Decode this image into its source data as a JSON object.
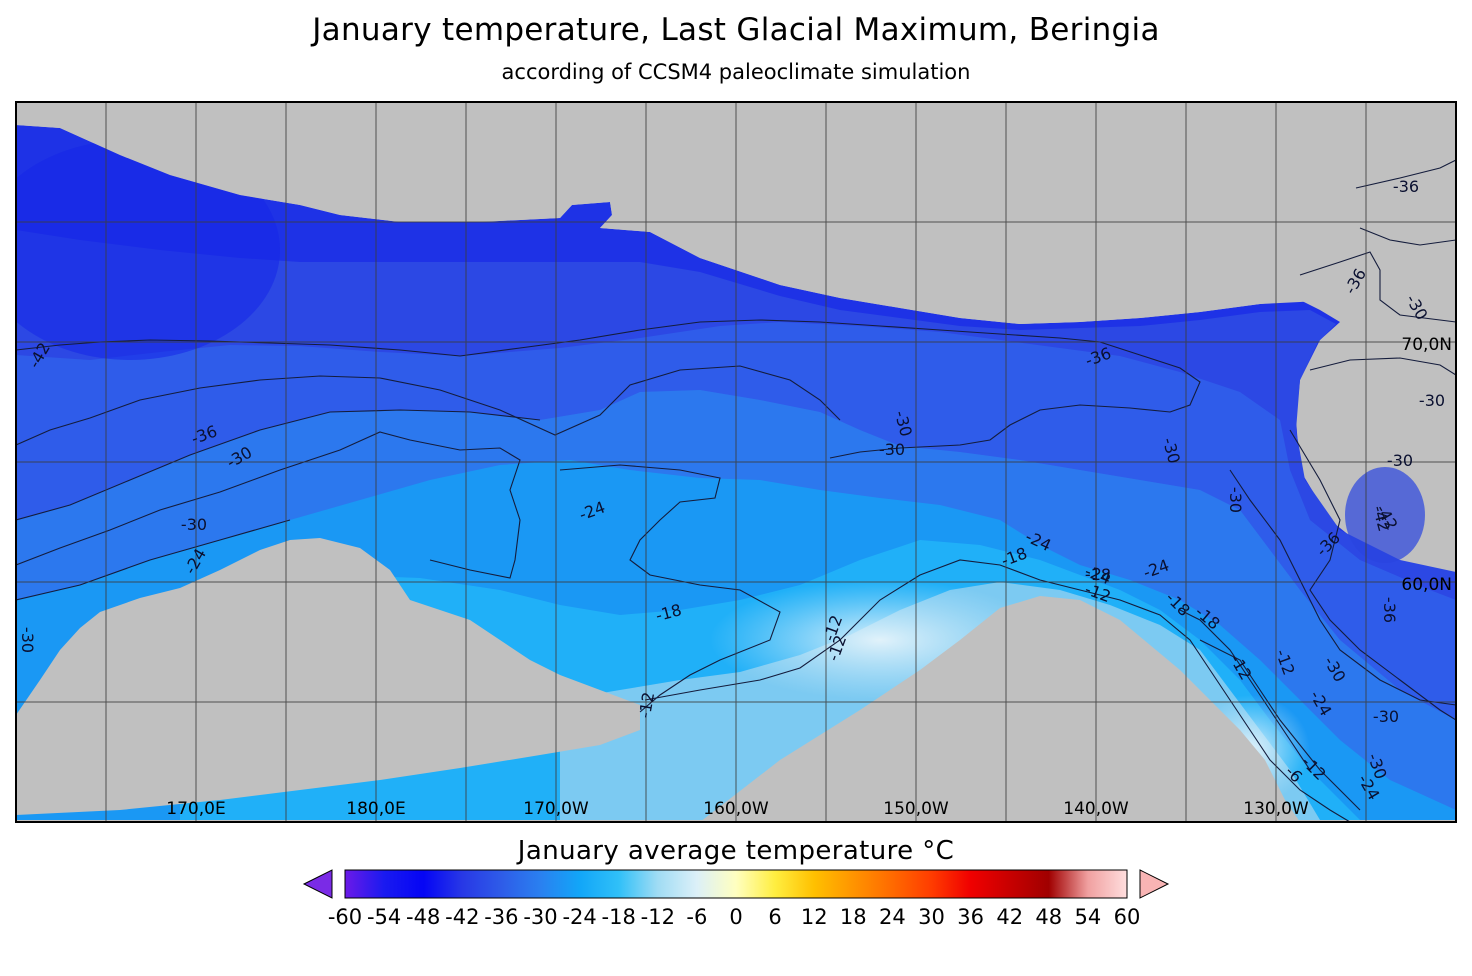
{
  "title": "January temperature, Last Glacial Maximum, Beringia",
  "subtitle": "according of CCSM4 paleoclimate simulation",
  "colors": {
    "land_mask": "#c0c0c0",
    "frame": "#000000",
    "grid": "#3c3c3c",
    "contour": "#141c3c"
  },
  "map": {
    "longitude_labels": [
      "170,0E",
      "180,0E",
      "170,0W",
      "160,0W",
      "150,0W",
      "140,0W",
      "130,0W"
    ],
    "latitude_labels": [
      "70,0N",
      "60,0N"
    ],
    "contour_labels": [
      "-42",
      "-36",
      "-30",
      "-30",
      "-24",
      "-24",
      "-30",
      "-30",
      "-24",
      "-18",
      "-30",
      "-30",
      "-12",
      "-12",
      "-12",
      "-36",
      "-30",
      "-30",
      "-30",
      "-36",
      "-30",
      "-36",
      "-36",
      "-42",
      "-24",
      "-18",
      "-24",
      "-12",
      "-12",
      "-18",
      "-18",
      "-12",
      "-18",
      "-30",
      "-24",
      "-30",
      "-36",
      "-30",
      "-24",
      "-12",
      "-6",
      "-42"
    ]
  },
  "colorbar": {
    "title": "January average temperature °C",
    "min": -60,
    "max": 60,
    "step": 6,
    "ticks": [
      "-60",
      "-54",
      "-48",
      "-42",
      "-36",
      "-30",
      "-24",
      "-18",
      "-12",
      "-6",
      "0",
      "6",
      "12",
      "18",
      "24",
      "30",
      "36",
      "42",
      "48",
      "54",
      "60"
    ],
    "stops": [
      "#6b1ae8",
      "#1a1af0",
      "#0505f5",
      "#2838e6",
      "#2e5ce8",
      "#2a80f0",
      "#12a6f8",
      "#30c0f8",
      "#a0dcf4",
      "#dcf0f8",
      "#ffffc0",
      "#ffee40",
      "#ffc000",
      "#ff9400",
      "#ff6a00",
      "#ff3c00",
      "#f00000",
      "#c80000",
      "#a00000",
      "#f0a0a0",
      "#ffdede"
    ],
    "under_color": "#7a2be6",
    "over_color": "#f8b4b4"
  }
}
